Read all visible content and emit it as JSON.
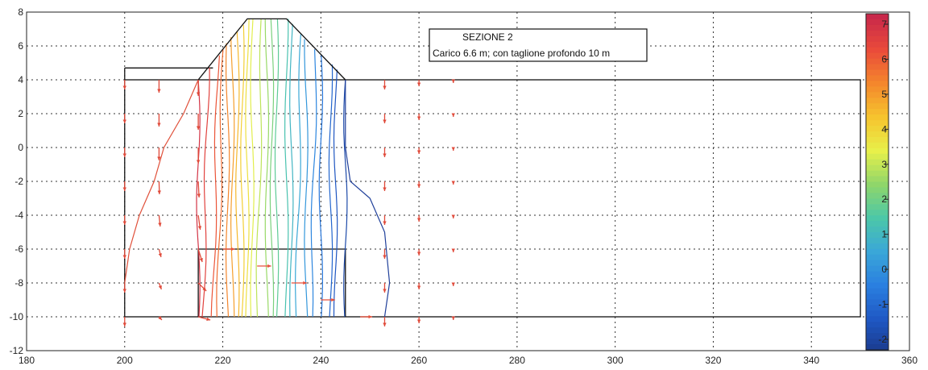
{
  "chart_data": {
    "type": "contour",
    "title": "",
    "xlabel": "",
    "ylabel": "",
    "xlim": [
      180,
      360
    ],
    "ylim": [
      -12,
      8
    ],
    "grid": true,
    "x_ticks": [
      "180",
      "200",
      "220",
      "240",
      "260",
      "280",
      "300",
      "320",
      "340",
      "360"
    ],
    "y_ticks": [
      "8",
      "6",
      "4",
      "2",
      "0",
      "-2",
      "-4",
      "-6",
      "-8",
      "-10",
      "-12"
    ],
    "colorbar": {
      "range": [
        -2.3,
        7.3
      ],
      "ticks": [
        "7",
        "6",
        "5",
        "4",
        "3",
        "2",
        "1",
        "0",
        "-1",
        "-2"
      ],
      "colors": [
        "#1a3a8c",
        "#1f58c4",
        "#2a7fe0",
        "#3aa7d8",
        "#4cc7a8",
        "#8fd66a",
        "#e8f04a",
        "#f6c42e",
        "#f4872c",
        "#ea4b3a",
        "#c8284a"
      ]
    },
    "annotation": {
      "title": "SEZIONE 2",
      "subtitle": "Carico 6.6 m; con taglione profondo 10 m"
    },
    "embankment_profile": {
      "x": [
        215,
        225,
        233,
        245
      ],
      "y": [
        4,
        7.6,
        7.6,
        4
      ]
    },
    "foundation_domain": {
      "x": [
        200,
        350
      ],
      "y": [
        -10,
        4
      ]
    },
    "cutoff_wall": {
      "x": [
        215,
        245
      ],
      "y": [
        -10,
        -6
      ]
    },
    "contour_lines": [
      {
        "level": 7,
        "x_top": 215,
        "x_bottom": 215
      },
      {
        "level": 6.6,
        "x_top": 217,
        "x_bottom": 216
      },
      {
        "level": 6.2,
        "x_top": 219,
        "x_bottom": 218
      },
      {
        "level": 5.8,
        "x_top": 220,
        "x_bottom": 219
      },
      {
        "level": 5.4,
        "x_top": 221,
        "x_bottom": 221
      },
      {
        "level": 5,
        "x_top": 222,
        "x_bottom": 222
      },
      {
        "level": 4.6,
        "x_top": 223,
        "x_bottom": 223
      },
      {
        "level": 4.2,
        "x_top": 224,
        "x_bottom": 224
      },
      {
        "level": 3.8,
        "x_top": 225,
        "x_bottom": 225
      },
      {
        "level": 3.4,
        "x_top": 226,
        "x_bottom": 226
      },
      {
        "level": 3,
        "x_top": 228,
        "x_bottom": 227
      },
      {
        "level": 2.6,
        "x_top": 229,
        "x_bottom": 229
      },
      {
        "level": 2.2,
        "x_top": 230,
        "x_bottom": 230
      },
      {
        "level": 1.8,
        "x_top": 231,
        "x_bottom": 231
      },
      {
        "level": 1.4,
        "x_top": 233,
        "x_bottom": 233
      },
      {
        "level": 1,
        "x_top": 234,
        "x_bottom": 234
      },
      {
        "level": 0.6,
        "x_top": 236,
        "x_bottom": 235
      },
      {
        "level": 0.2,
        "x_top": 237,
        "x_bottom": 237
      },
      {
        "level": -0.2,
        "x_top": 239,
        "x_bottom": 238
      },
      {
        "level": -0.6,
        "x_top": 240,
        "x_bottom": 240
      },
      {
        "level": -1,
        "x_top": 242,
        "x_bottom": 242
      },
      {
        "level": -1.4,
        "x_top": 243,
        "x_bottom": 243
      },
      {
        "level": -1.8,
        "x_top": 245,
        "x_bottom": 245
      }
    ],
    "outer_curves": [
      {
        "side": "left",
        "x": [
          215,
          212,
          208,
          206,
          203,
          201,
          200
        ],
        "y": [
          4,
          2,
          0,
          -2,
          -4,
          -6,
          -8
        ]
      },
      {
        "side": "right",
        "x": [
          245,
          245,
          246,
          250,
          253,
          254,
          253
        ],
        "y": [
          4,
          0,
          -2,
          -3,
          -5,
          -8,
          -10
        ]
      }
    ],
    "vector_columns": [
      {
        "x": 200,
        "y": [
          4,
          2,
          0,
          -2,
          -4,
          -6,
          -8,
          -10
        ],
        "dx": [
          0,
          0,
          0,
          0,
          0,
          0,
          0,
          0
        ],
        "dy": [
          -0.6,
          -0.6,
          -0.6,
          -0.6,
          -0.6,
          -0.6,
          -0.6,
          -0.6
        ]
      },
      {
        "x": 207,
        "y": [
          4,
          2,
          0,
          -2,
          -4,
          -6,
          -8,
          -10
        ],
        "dx": [
          0,
          0,
          0,
          0.1,
          0.3,
          0.5,
          0.6,
          0.7
        ],
        "dy": [
          -0.8,
          -0.8,
          -0.8,
          -0.8,
          -0.7,
          -0.5,
          -0.4,
          -0.2
        ]
      },
      {
        "x": 215,
        "y": [
          4,
          2,
          0,
          -2,
          -4,
          -6,
          -8,
          -10
        ],
        "dx": [
          0,
          0,
          0,
          0.2,
          0.5,
          1,
          2,
          3
        ],
        "dy": [
          -1,
          -1,
          -1,
          -1,
          -0.9,
          -0.8,
          -0.5,
          -0.2
        ]
      },
      {
        "x": 253,
        "y": [
          4,
          2,
          0,
          -2,
          -4,
          -6,
          -8,
          -10
        ],
        "dx": [
          0,
          0,
          0,
          0,
          0,
          0,
          0,
          0
        ],
        "dy": [
          -0.6,
          -0.6,
          -0.6,
          -0.6,
          -0.6,
          -0.6,
          -0.6,
          -0.6
        ]
      },
      {
        "x": 260,
        "y": [
          4,
          2,
          0,
          -2,
          -4,
          -6,
          -8,
          -10
        ],
        "dx": [
          0,
          0,
          0,
          0,
          0,
          0,
          0,
          0
        ],
        "dy": [
          -0.4,
          -0.4,
          -0.4,
          -0.4,
          -0.4,
          -0.4,
          -0.4,
          -0.4
        ]
      },
      {
        "x": 267,
        "y": [
          4,
          2,
          0,
          -2,
          -4,
          -6,
          -8,
          -10
        ],
        "dx": [
          0,
          0,
          0,
          0,
          0,
          0,
          0,
          0
        ],
        "dy": [
          -0.2,
          -0.2,
          -0.2,
          -0.2,
          -0.2,
          -0.2,
          -0.2,
          -0.2
        ]
      }
    ],
    "cutoff_vectors": {
      "x": [
        220,
        227,
        234,
        240,
        248
      ],
      "y": [
        -6,
        -7,
        -8,
        -9,
        -10
      ],
      "dx": [
        3,
        3.5,
        3.8,
        3.5,
        3
      ],
      "dy": [
        0,
        0,
        0,
        0,
        0
      ]
    }
  }
}
